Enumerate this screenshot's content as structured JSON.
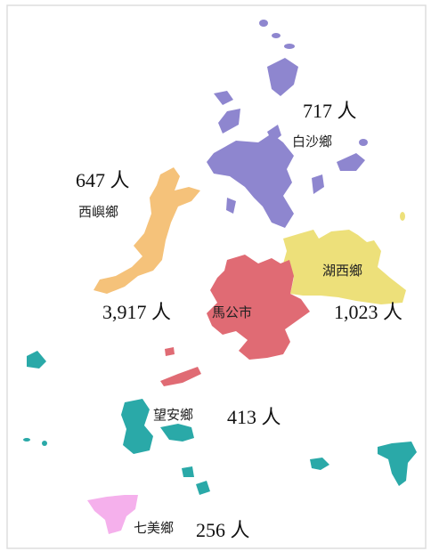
{
  "regions": [
    {
      "name": "白沙鄉",
      "population": "717 人"
    },
    {
      "name": "西嶼鄉",
      "population": "647 人"
    },
    {
      "name": "湖西鄉",
      "population": "1,023 人"
    },
    {
      "name": "馬公市",
      "population": "3,917 人"
    },
    {
      "name": "望安鄉",
      "population": "413 人"
    },
    {
      "name": "七美鄉",
      "population": "256 人"
    }
  ]
}
